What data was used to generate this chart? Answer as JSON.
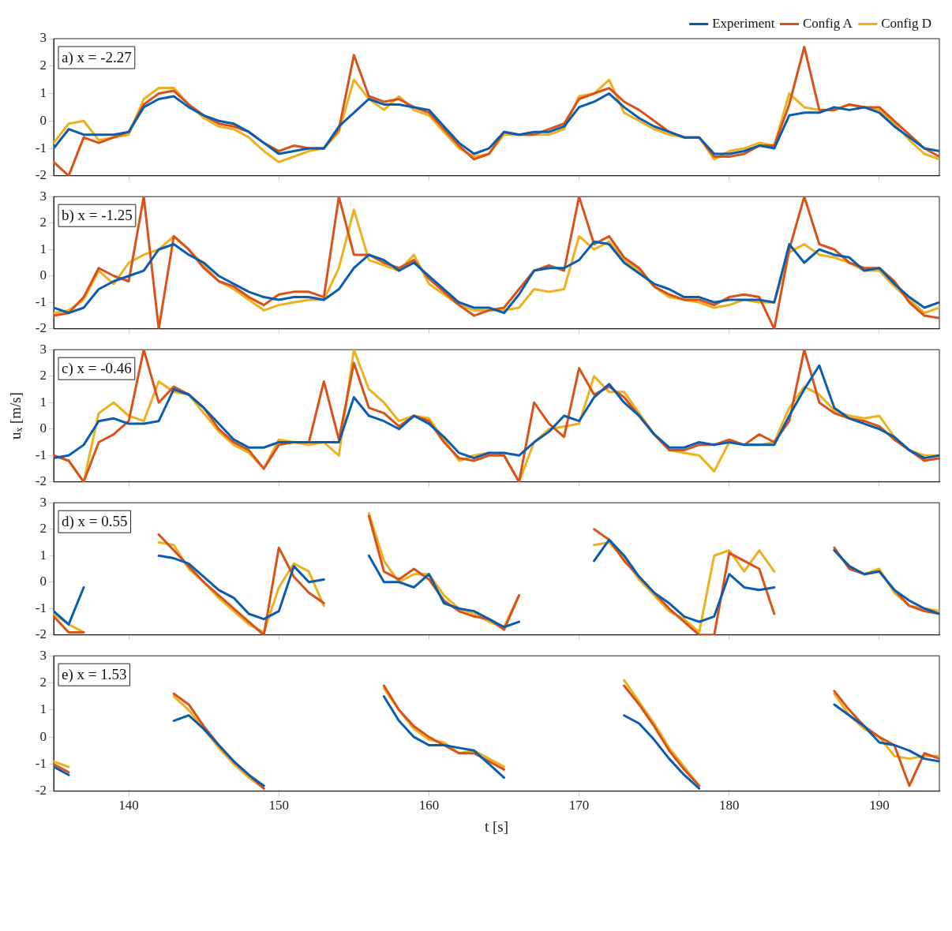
{
  "chart_data": [
    {
      "type": "line",
      "annotations": [
        "a) x = -2.27"
      ],
      "xlim": [
        135,
        194
      ],
      "xticks": [
        140,
        150,
        160,
        170,
        180,
        190
      ],
      "ylim": [
        -2,
        3
      ],
      "yticks": [
        -2,
        -1,
        0,
        1,
        2,
        3
      ],
      "tick_labels": "y",
      "legend": "top right",
      "marker": "none",
      "x": [
        135,
        136,
        137,
        138,
        139,
        140,
        141,
        142,
        143,
        144,
        145,
        146,
        147,
        148,
        149,
        150,
        151,
        152,
        153,
        154,
        155,
        156,
        157,
        158,
        159,
        160,
        161,
        162,
        163,
        164,
        165,
        166,
        167,
        168,
        169,
        170,
        171,
        172,
        173,
        174,
        175,
        176,
        177,
        178,
        179,
        180,
        181,
        182,
        183,
        184,
        185,
        186,
        187,
        188,
        189,
        190,
        191,
        192,
        193,
        194
      ],
      "series": [
        {
          "name": "Experiment",
          "color": "#0b5db0",
          "values": [
            -1,
            -0.3,
            -0.5,
            -0.5,
            -0.5,
            -0.4,
            0.5,
            0.8,
            0.9,
            0.5,
            0.2,
            0,
            -0.1,
            -0.4,
            -0.8,
            -1.2,
            -1.1,
            -1,
            -1,
            -0.2,
            0.3,
            0.8,
            0.6,
            0.6,
            0.5,
            0.4,
            -0.2,
            -0.8,
            -1.2,
            -1,
            -0.4,
            -0.5,
            -0.4,
            -0.4,
            -0.2,
            0.5,
            0.7,
            1.0,
            0.5,
            0.1,
            -0.2,
            -0.4,
            -0.6,
            -0.6,
            -1.2,
            -1.2,
            -1.1,
            -0.9,
            -1,
            0.2,
            0.3,
            0.3,
            0.5,
            0.4,
            0.5,
            0.3,
            -0.2,
            -0.6,
            -1,
            -1.1
          ]
        },
        {
          "name": "Config A",
          "color": "#d95319",
          "values": [
            -1.5,
            -2,
            -0.6,
            -0.8,
            -0.6,
            -0.4,
            0.6,
            1.0,
            1.1,
            0.6,
            0.2,
            -0.1,
            -0.2,
            -0.4,
            -0.8,
            -1.1,
            -0.9,
            -1.0,
            -1.0,
            -0.3,
            2.4,
            0.9,
            0.7,
            0.8,
            0.5,
            0.3,
            -0.3,
            -0.9,
            -1.4,
            -1.2,
            -0.4,
            -0.5,
            -0.5,
            -0.3,
            -0.1,
            0.8,
            1.0,
            1.2,
            0.7,
            0.4,
            0.0,
            -0.4,
            -0.6,
            -0.6,
            -1.3,
            -1.3,
            -1.2,
            -0.9,
            -0.9,
            0.6,
            2.7,
            0.4,
            0.4,
            0.6,
            0.5,
            0.5,
            0.0,
            -0.5,
            -1.0,
            -1.3
          ]
        },
        {
          "name": "Config D",
          "color": "#edb120",
          "values": [
            -0.8,
            -0.1,
            0.0,
            -0.7,
            -0.6,
            -0.5,
            0.8,
            1.2,
            1.2,
            0.6,
            0.1,
            -0.2,
            -0.3,
            -0.6,
            -1.1,
            -1.5,
            -1.3,
            -1.1,
            -1.0,
            -0.4,
            1.5,
            0.8,
            0.4,
            0.9,
            0.4,
            0.2,
            -0.4,
            -1.0,
            -1.3,
            -1.2,
            -0.5,
            -0.5,
            -0.5,
            -0.5,
            -0.3,
            0.9,
            1.0,
            1.5,
            0.3,
            0.0,
            -0.3,
            -0.5,
            -0.6,
            -0.6,
            -1.4,
            -1.1,
            -1.0,
            -0.8,
            -0.9,
            1.0,
            0.5,
            0.4,
            0.4,
            0.6,
            0.5,
            0.4,
            -0.1,
            -0.7,
            -1.2,
            -1.4
          ]
        }
      ]
    },
    {
      "type": "line",
      "annotations": [
        "b) x = -1.25"
      ],
      "xlim": [
        135,
        194
      ],
      "xticks": [
        140,
        150,
        160,
        170,
        180,
        190
      ],
      "ylim": [
        -2,
        3
      ],
      "yticks": [
        -2,
        -1,
        0,
        1,
        2,
        3
      ],
      "tick_labels": "y",
      "marker": "none",
      "x": [
        135,
        136,
        137,
        138,
        139,
        140,
        141,
        142,
        143,
        144,
        145,
        146,
        147,
        148,
        149,
        150,
        151,
        152,
        153,
        154,
        155,
        156,
        157,
        158,
        159,
        160,
        161,
        162,
        163,
        164,
        165,
        166,
        167,
        168,
        169,
        170,
        171,
        172,
        173,
        174,
        175,
        176,
        177,
        178,
        179,
        180,
        181,
        182,
        183,
        184,
        185,
        186,
        187,
        188,
        189,
        190,
        191,
        192,
        193,
        194
      ],
      "series": [
        {
          "color": "#0b5db0",
          "values": [
            -1.2,
            -1.4,
            -1.2,
            -0.5,
            -0.2,
            0,
            0.2,
            1.0,
            1.2,
            0.8,
            0.5,
            0,
            -0.3,
            -0.6,
            -0.8,
            -0.9,
            -0.8,
            -0.8,
            -0.9,
            -0.5,
            0.3,
            0.8,
            0.6,
            0.2,
            0.5,
            0,
            -0.5,
            -1,
            -1.2,
            -1.2,
            -1.4,
            -0.7,
            0.2,
            0.3,
            0.3,
            0.6,
            1.3,
            1.2,
            0.5,
            0.1,
            -0.3,
            -0.5,
            -0.8,
            -0.8,
            -1,
            -0.9,
            -0.9,
            -0.9,
            -1,
            1.2,
            0.5,
            1,
            0.8,
            0.7,
            0.2,
            0.3,
            -0.3,
            -0.8,
            -1.2,
            -1
          ]
        },
        {
          "color": "#d95319",
          "values": [
            -1.5,
            -1.4,
            -0.8,
            0.3,
            0.0,
            -0.2,
            3.0,
            -2.0,
            1.5,
            1.0,
            0.3,
            -0.2,
            -0.4,
            -0.8,
            -1.1,
            -0.7,
            -0.6,
            -0.6,
            -0.8,
            3.0,
            0.8,
            0.8,
            0.5,
            0.3,
            0.6,
            -0.1,
            -0.6,
            -1.1,
            -1.5,
            -1.3,
            -1.2,
            -0.5,
            0.2,
            0.4,
            0.2,
            3.0,
            1.2,
            1.5,
            0.7,
            0.3,
            -0.4,
            -0.7,
            -0.9,
            -0.9,
            -1.1,
            -0.8,
            -0.7,
            -0.8,
            -2.0,
            1.0,
            3.0,
            1.2,
            1.0,
            0.5,
            0.3,
            0.3,
            -0.2,
            -1.0,
            -1.5,
            -1.6
          ]
        },
        {
          "color": "#edb120",
          "values": [
            -1.4,
            -1.3,
            -0.9,
            0.2,
            -0.3,
            0.5,
            0.8,
            1.0,
            1.5,
            1.0,
            0.4,
            -0.2,
            -0.5,
            -0.9,
            -1.3,
            -1.1,
            -1.0,
            -0.9,
            -0.9,
            0.3,
            2.5,
            0.6,
            0.4,
            0.2,
            0.8,
            -0.3,
            -0.7,
            -1.1,
            -1.3,
            -1.3,
            -1.3,
            -1.2,
            -0.5,
            -0.6,
            -0.5,
            1.5,
            1.0,
            1.3,
            0.6,
            0.2,
            -0.4,
            -0.8,
            -0.9,
            -1.0,
            -1.2,
            -1.1,
            -0.9,
            -1.0,
            -1.0,
            0.9,
            1.2,
            0.8,
            0.7,
            0.5,
            0.2,
            0.2,
            -0.4,
            -0.9,
            -1.4,
            -1.2
          ]
        }
      ]
    },
    {
      "type": "line",
      "annotations": [
        "c) x = -0.46"
      ],
      "ylabel": "uₓ [m/s]",
      "xlim": [
        135,
        194
      ],
      "xticks": [
        140,
        150,
        160,
        170,
        180,
        190
      ],
      "ylim": [
        -2,
        3
      ],
      "yticks": [
        -2,
        -1,
        0,
        1,
        2,
        3
      ],
      "tick_labels": "y",
      "marker": "none",
      "x": [
        135,
        136,
        137,
        138,
        139,
        140,
        141,
        142,
        143,
        144,
        145,
        146,
        147,
        148,
        149,
        150,
        151,
        152,
        153,
        154,
        155,
        156,
        157,
        158,
        159,
        160,
        161,
        162,
        163,
        164,
        165,
        166,
        167,
        168,
        169,
        170,
        171,
        172,
        173,
        174,
        175,
        176,
        177,
        178,
        179,
        180,
        181,
        182,
        183,
        184,
        185,
        186,
        187,
        188,
        189,
        190,
        191,
        192,
        193,
        194
      ],
      "series": [
        {
          "color": "#0b5db0",
          "values": [
            -1.1,
            -1.0,
            -0.6,
            0.3,
            0.4,
            0.2,
            0.2,
            0.3,
            1.5,
            1.3,
            0.8,
            0.2,
            -0.4,
            -0.7,
            -0.7,
            -0.5,
            -0.5,
            -0.5,
            -0.5,
            -0.5,
            1.2,
            0.5,
            0.3,
            0.0,
            0.5,
            0.2,
            -0.3,
            -0.9,
            -1.1,
            -0.9,
            -0.9,
            -1.0,
            -0.5,
            -0.1,
            0.5,
            0.3,
            1.2,
            1.7,
            1.0,
            0.5,
            -0.2,
            -0.7,
            -0.7,
            -0.5,
            -0.6,
            -0.5,
            -0.6,
            -0.6,
            -0.6,
            0.5,
            1.5,
            2.4,
            0.8,
            0.4,
            0.2,
            0.0,
            -0.3,
            -0.8,
            -1.1,
            -1.0
          ]
        },
        {
          "color": "#d95319",
          "values": [
            -1.0,
            -1.2,
            -2.0,
            -0.5,
            -0.2,
            0.3,
            3.0,
            1.0,
            1.6,
            1.3,
            0.8,
            0.0,
            -0.5,
            -0.8,
            -1.5,
            -0.6,
            -0.5,
            -0.5,
            1.8,
            -0.4,
            2.5,
            0.8,
            0.6,
            0.1,
            0.5,
            0.3,
            -0.5,
            -1.1,
            -1.2,
            -1.0,
            -1.0,
            -2.0,
            1.0,
            0.2,
            -0.3,
            2.3,
            1.3,
            1.6,
            1.2,
            0.5,
            -0.2,
            -0.8,
            -0.8,
            -0.6,
            -0.6,
            -0.4,
            -0.6,
            -0.2,
            -0.5,
            0.3,
            3.0,
            1.0,
            0.6,
            0.4,
            0.3,
            0.1,
            -0.4,
            -0.8,
            -1.2,
            -1.1
          ]
        },
        {
          "color": "#edb120",
          "values": [
            -1.0,
            -1.2,
            -2.0,
            0.6,
            1.0,
            0.5,
            0.3,
            1.8,
            1.4,
            1.3,
            0.6,
            -0.1,
            -0.6,
            -0.9,
            -1.5,
            -0.4,
            -0.5,
            -0.6,
            -0.5,
            -1.0,
            3.0,
            1.5,
            1.0,
            0.3,
            0.5,
            0.4,
            -0.4,
            -1.2,
            -1.0,
            -0.9,
            -1.0,
            -2.0,
            -0.5,
            0.0,
            0.1,
            0.2,
            2.0,
            1.4,
            1.4,
            0.6,
            -0.2,
            -0.8,
            -0.9,
            -1.0,
            -1.6,
            -0.5,
            -0.6,
            -0.6,
            -0.5,
            0.8,
            1.6,
            1.3,
            0.7,
            0.5,
            0.4,
            0.5,
            -0.3,
            -0.8,
            -1.0,
            -1.0
          ]
        }
      ]
    },
    {
      "type": "line",
      "annotations": [
        "d) x = 0.55"
      ],
      "xlim": [
        135,
        194
      ],
      "xticks": [
        140,
        150,
        160,
        170,
        180,
        190
      ],
      "ylim": [
        -2,
        3
      ],
      "yticks": [
        -2,
        -1,
        0,
        1,
        2,
        3
      ],
      "tick_labels": "y",
      "marker": "none",
      "x": [
        135,
        136,
        137,
        138,
        139,
        140,
        141,
        142,
        143,
        144,
        145,
        146,
        147,
        148,
        149,
        150,
        151,
        152,
        153,
        154,
        155,
        156,
        157,
        158,
        159,
        160,
        161,
        162,
        163,
        164,
        165,
        166,
        167,
        168,
        169,
        170,
        171,
        172,
        173,
        174,
        175,
        176,
        177,
        178,
        179,
        180,
        181,
        182,
        183,
        184,
        185,
        186,
        187,
        188,
        189,
        190,
        191,
        192,
        193,
        194
      ],
      "series": [
        {
          "color": "#0b5db0",
          "values": [
            -1.1,
            -1.6,
            -0.2,
            null,
            null,
            null,
            null,
            1.0,
            0.9,
            0.7,
            0.2,
            -0.3,
            -0.6,
            -1.2,
            -1.4,
            -1.1,
            0.6,
            0.0,
            0.1,
            null,
            null,
            1.0,
            0.0,
            0.0,
            -0.2,
            0.3,
            -0.8,
            -1.0,
            -1.1,
            -1.4,
            -1.7,
            -1.5,
            null,
            null,
            null,
            null,
            0.8,
            1.6,
            1.0,
            0.2,
            -0.4,
            -0.8,
            -1.3,
            -1.5,
            -1.3,
            0.3,
            -0.2,
            -0.3,
            -0.2,
            null,
            null,
            null,
            1.2,
            0.6,
            0.3,
            0.4,
            -0.3,
            -0.7,
            -1.0,
            -1.2
          ]
        },
        {
          "color": "#d95319",
          "values": [
            -1.3,
            -1.9,
            -1.9,
            null,
            null,
            null,
            null,
            1.8,
            1.2,
            0.6,
            0.0,
            -0.5,
            -1.0,
            -1.5,
            -2.0,
            1.3,
            0.2,
            -0.4,
            -0.8,
            null,
            null,
            2.5,
            0.4,
            0.1,
            0.5,
            0.1,
            -0.7,
            -1.1,
            -1.3,
            -1.4,
            -1.8,
            -0.5,
            null,
            null,
            null,
            null,
            2.0,
            1.6,
            0.8,
            0.2,
            -0.4,
            -1.0,
            -1.5,
            -2.0,
            -2.0,
            1.1,
            0.8,
            0.5,
            -1.2,
            null,
            null,
            null,
            1.3,
            0.5,
            0.3,
            0.4,
            -0.3,
            -0.9,
            -1.1,
            -1.2
          ]
        },
        {
          "color": "#edb120",
          "values": [
            -1.2,
            -1.6,
            -1.9,
            null,
            null,
            null,
            null,
            1.5,
            1.4,
            0.5,
            0.0,
            -0.6,
            -1.1,
            -1.6,
            -1.9,
            -0.2,
            0.7,
            0.4,
            -0.9,
            null,
            null,
            2.6,
            0.8,
            0.0,
            0.3,
            0.3,
            -0.5,
            -1.0,
            -1.2,
            -1.5,
            -1.7,
            -0.5,
            null,
            null,
            null,
            null,
            1.4,
            1.5,
            0.9,
            0.1,
            -0.5,
            -1.1,
            -1.4,
            -1.9,
            1.0,
            1.2,
            0.4,
            1.2,
            0.4,
            null,
            null,
            null,
            1.2,
            0.6,
            0.3,
            0.5,
            -0.4,
            -0.9,
            -1.0,
            -1.1
          ]
        }
      ]
    },
    {
      "type": "line",
      "annotations": [
        "e) x = 1.53"
      ],
      "xlabel": "t [s]",
      "xlim": [
        135,
        194
      ],
      "xticks": [
        140,
        150,
        160,
        170,
        180,
        190
      ],
      "ylim": [
        -2,
        3
      ],
      "yticks": [
        -2,
        -1,
        0,
        1,
        2,
        3
      ],
      "marker": "none",
      "x": [
        135,
        136,
        137,
        138,
        139,
        140,
        141,
        142,
        143,
        144,
        145,
        146,
        147,
        148,
        149,
        150,
        151,
        152,
        153,
        154,
        155,
        156,
        157,
        158,
        159,
        160,
        161,
        162,
        163,
        164,
        165,
        166,
        167,
        168,
        169,
        170,
        171,
        172,
        173,
        174,
        175,
        176,
        177,
        178,
        179,
        180,
        181,
        182,
        183,
        184,
        185,
        186,
        187,
        188,
        189,
        190,
        191,
        192,
        193,
        194
      ],
      "series": [
        {
          "color": "#0b5db0",
          "values": [
            -1.1,
            -1.4,
            null,
            null,
            null,
            null,
            null,
            null,
            0.6,
            0.8,
            0.3,
            -0.3,
            -0.9,
            -1.4,
            -1.8,
            null,
            null,
            null,
            null,
            null,
            null,
            null,
            1.5,
            0.6,
            0.0,
            -0.3,
            -0.3,
            -0.4,
            -0.5,
            -1.0,
            -1.5,
            null,
            null,
            null,
            null,
            null,
            null,
            null,
            0.8,
            0.5,
            -0.1,
            -0.8,
            -1.4,
            -1.9,
            null,
            null,
            null,
            null,
            null,
            null,
            null,
            null,
            1.2,
            0.8,
            0.4,
            -0.2,
            -0.3,
            -0.5,
            -0.8,
            -0.9
          ]
        },
        {
          "color": "#d95319",
          "values": [
            -1.0,
            -1.3,
            null,
            null,
            null,
            null,
            null,
            null,
            1.6,
            1.2,
            0.4,
            -0.3,
            -0.9,
            -1.4,
            -1.9,
            null,
            null,
            null,
            null,
            null,
            null,
            null,
            1.9,
            1.0,
            0.4,
            0.0,
            -0.3,
            -0.6,
            -0.6,
            -0.9,
            -1.2,
            null,
            null,
            null,
            null,
            null,
            null,
            null,
            1.9,
            1.2,
            0.4,
            -0.5,
            -1.2,
            -1.8,
            null,
            null,
            null,
            null,
            null,
            null,
            null,
            null,
            1.7,
            1.0,
            0.4,
            0.0,
            -0.3,
            -1.8,
            -0.6,
            -0.8
          ]
        },
        {
          "color": "#edb120",
          "values": [
            -0.9,
            -1.1,
            null,
            null,
            null,
            null,
            null,
            null,
            1.5,
            1.0,
            0.3,
            -0.4,
            -1.0,
            -1.5,
            -1.9,
            null,
            null,
            null,
            null,
            null,
            null,
            null,
            1.8,
            1.0,
            0.3,
            -0.1,
            -0.2,
            -0.6,
            -0.5,
            -0.8,
            -1.1,
            null,
            null,
            null,
            null,
            null,
            null,
            null,
            2.1,
            1.3,
            0.5,
            -0.4,
            -1.1,
            -1.8,
            null,
            null,
            null,
            null,
            null,
            null,
            null,
            null,
            1.6,
            0.8,
            0.3,
            0.0,
            -0.7,
            -0.8,
            -0.7,
            -0.7
          ]
        }
      ]
    }
  ]
}
